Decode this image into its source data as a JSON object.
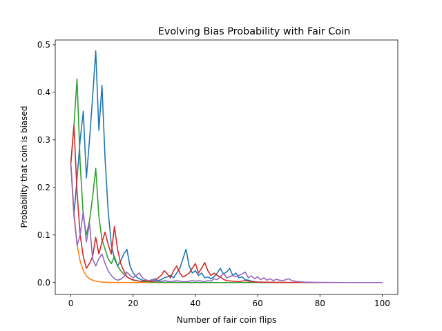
{
  "chart_data": {
    "type": "line",
    "title": "Evolving Bias Probability with Fair Coin",
    "xlabel": "Number of fair coin flips",
    "ylabel": "Probability that coin is biased",
    "xlim": [
      -5,
      105
    ],
    "ylim": [
      -0.025,
      0.51
    ],
    "xticks": [
      0,
      20,
      40,
      60,
      80,
      100
    ],
    "yticks": [
      0.0,
      0.1,
      0.2,
      0.3,
      0.4,
      0.5
    ],
    "xtick_labels": [
      "0",
      "20",
      "40",
      "60",
      "80",
      "100"
    ],
    "ytick_labels": [
      "0.0",
      "0.1",
      "0.2",
      "0.3",
      "0.4",
      "0.5"
    ],
    "grid": false,
    "series": [
      {
        "color": "#1f77b4",
        "x": [
          0,
          1,
          2,
          3,
          4,
          5,
          6,
          7,
          8,
          9,
          10,
          11,
          12,
          13,
          14,
          15,
          16,
          17,
          18,
          19,
          20,
          21,
          22,
          23,
          24,
          25,
          26,
          27,
          28,
          29,
          30,
          31,
          32,
          33,
          34,
          35,
          36,
          37,
          38,
          39,
          40,
          41,
          42,
          43,
          44,
          45,
          46,
          47,
          48,
          49,
          50,
          51,
          52,
          53,
          54,
          55,
          56,
          57,
          58,
          59,
          60,
          62,
          65,
          70,
          75,
          80,
          90,
          100
        ],
        "y": [
          0.25,
          0.14,
          0.22,
          0.3,
          0.36,
          0.22,
          0.3,
          0.39,
          0.487,
          0.32,
          0.415,
          0.26,
          0.15,
          0.08,
          0.05,
          0.035,
          0.045,
          0.06,
          0.07,
          0.035,
          0.02,
          0.012,
          0.008,
          0.005,
          0.004,
          0.003,
          0.005,
          0.008,
          0.004,
          0.006,
          0.01,
          0.012,
          0.015,
          0.01,
          0.02,
          0.03,
          0.05,
          0.07,
          0.035,
          0.02,
          0.025,
          0.015,
          0.02,
          0.01,
          0.012,
          0.008,
          0.012,
          0.02,
          0.03,
          0.018,
          0.022,
          0.03,
          0.015,
          0.02,
          0.01,
          0.012,
          0.006,
          0.005,
          0.003,
          0.002,
          0.001,
          0.0005,
          0.0003,
          0.0001,
          0.0,
          0.0,
          0.0,
          0.0
        ]
      },
      {
        "color": "#ff7f0e",
        "x": [
          0,
          1,
          2,
          3,
          4,
          5,
          6,
          7,
          8,
          9,
          10,
          12,
          14,
          16,
          18,
          20,
          25,
          30,
          40,
          50,
          60,
          70,
          80,
          90,
          100
        ],
        "y": [
          0.25,
          0.14,
          0.08,
          0.045,
          0.025,
          0.014,
          0.008,
          0.005,
          0.003,
          0.002,
          0.001,
          0.0005,
          0.0002,
          0.0001,
          0.0,
          0.0,
          0.0,
          0.0,
          0.0,
          0.0,
          0.0,
          0.0,
          0.0,
          0.0,
          0.0
        ]
      },
      {
        "color": "#2ca02c",
        "x": [
          0,
          1,
          2,
          3,
          4,
          5,
          6,
          7,
          8,
          9,
          10,
          11,
          12,
          13,
          14,
          15,
          16,
          17,
          18,
          19,
          20,
          22,
          24,
          26,
          28,
          30,
          35,
          40,
          50,
          60,
          70,
          80,
          90,
          100
        ],
        "y": [
          0.25,
          0.33,
          0.428,
          0.25,
          0.14,
          0.1,
          0.13,
          0.18,
          0.24,
          0.14,
          0.09,
          0.07,
          0.05,
          0.04,
          0.055,
          0.035,
          0.025,
          0.018,
          0.012,
          0.008,
          0.005,
          0.003,
          0.002,
          0.001,
          0.001,
          0.0005,
          0.0002,
          0.0001,
          0.0,
          0.0,
          0.0,
          0.0,
          0.0,
          0.0
        ]
      },
      {
        "color": "#d62728",
        "x": [
          0,
          1,
          2,
          3,
          4,
          5,
          6,
          7,
          8,
          9,
          10,
          11,
          12,
          13,
          14,
          15,
          16,
          17,
          18,
          19,
          20,
          21,
          22,
          23,
          24,
          25,
          26,
          27,
          28,
          29,
          30,
          31,
          32,
          33,
          34,
          35,
          36,
          37,
          38,
          39,
          40,
          41,
          42,
          43,
          44,
          45,
          46,
          47,
          48,
          49,
          50,
          52,
          54,
          56,
          58,
          60,
          65,
          70,
          80,
          90,
          100
        ],
        "y": [
          0.25,
          0.33,
          0.19,
          0.1,
          0.055,
          0.03,
          0.04,
          0.055,
          0.095,
          0.06,
          0.085,
          0.106,
          0.08,
          0.06,
          0.118,
          0.07,
          0.04,
          0.025,
          0.012,
          0.008,
          0.006,
          0.004,
          0.003,
          0.002,
          0.005,
          0.003,
          0.002,
          0.004,
          0.01,
          0.015,
          0.025,
          0.018,
          0.01,
          0.025,
          0.035,
          0.02,
          0.012,
          0.015,
          0.02,
          0.03,
          0.04,
          0.02,
          0.03,
          0.042,
          0.025,
          0.015,
          0.02,
          0.015,
          0.012,
          0.007,
          0.004,
          0.003,
          0.002,
          0.004,
          0.002,
          0.001,
          0.0005,
          0.0002,
          0.0,
          0.0,
          0.0
        ]
      },
      {
        "color": "#9467bd",
        "x": [
          0,
          1,
          2,
          3,
          4,
          5,
          6,
          7,
          8,
          9,
          10,
          11,
          12,
          13,
          14,
          15,
          16,
          17,
          18,
          19,
          20,
          21,
          22,
          23,
          24,
          25,
          26,
          27,
          28,
          29,
          30,
          31,
          32,
          33,
          34,
          35,
          36,
          37,
          38,
          39,
          40,
          41,
          42,
          43,
          44,
          45,
          46,
          47,
          48,
          49,
          50,
          51,
          52,
          53,
          54,
          55,
          56,
          57,
          58,
          59,
          60,
          61,
          62,
          63,
          64,
          65,
          66,
          67,
          68,
          69,
          70,
          71,
          72,
          73,
          75,
          78,
          80,
          85,
          90,
          95,
          100
        ],
        "y": [
          0.25,
          0.15,
          0.078,
          0.1,
          0.15,
          0.085,
          0.125,
          0.05,
          0.035,
          0.05,
          0.06,
          0.04,
          0.025,
          0.015,
          0.008,
          0.005,
          0.007,
          0.012,
          0.022,
          0.015,
          0.01,
          0.015,
          0.02,
          0.01,
          0.006,
          0.004,
          0.006,
          0.004,
          0.003,
          0.002,
          0.004,
          0.003,
          0.002,
          0.003,
          0.004,
          0.003,
          0.002,
          0.002,
          0.003,
          0.004,
          0.003,
          0.004,
          0.003,
          0.002,
          0.004,
          0.003,
          0.008,
          0.006,
          0.012,
          0.02,
          0.01,
          0.012,
          0.015,
          0.012,
          0.015,
          0.018,
          0.022,
          0.01,
          0.014,
          0.008,
          0.012,
          0.006,
          0.01,
          0.005,
          0.008,
          0.004,
          0.007,
          0.005,
          0.004,
          0.006,
          0.008,
          0.004,
          0.003,
          0.002,
          0.001,
          0.0005,
          0.0003,
          0.0001,
          0.0,
          0.0,
          0.0
        ]
      }
    ]
  }
}
